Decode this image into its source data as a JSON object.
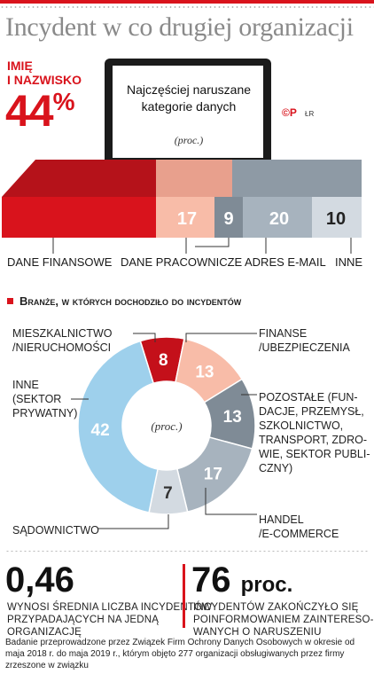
{
  "title": "Incydent w co drugiej organizacji",
  "colors": {
    "red": "#d9131c",
    "light_red": "#f8bca8",
    "dark_gray": "#7f8b96",
    "mid_gray": "#a7b3be",
    "light_gray": "#d3dae1",
    "blue": "#9ed0ec",
    "deep_red": "#c4101a"
  },
  "bar_section": {
    "highlight_label_line1": "IMIĘ",
    "highlight_label_line2": "I NAZWISKO",
    "highlight_value": "44",
    "highlight_unit": "%",
    "screen_text": "Najczęściej naruszane kategorie danych",
    "unit_note": "(proc.)",
    "logo_text": "©P",
    "logo_sub": "ŁR"
  },
  "pie_section": {
    "title": "Branże, w których dochodziło do incydentów",
    "center_unit": "(proc.)"
  },
  "chart_data": [
    {
      "type": "bar",
      "orientation": "stacked-horizontal",
      "unit": "proc.",
      "categories": [
        "IMIĘ I NAZWISKO",
        "DANE FINANSOWE",
        "DANE PRACOWNICZE",
        "ADRES E-MAIL",
        "INNE"
      ],
      "values": [
        44,
        null,
        17,
        20,
        10
      ],
      "labels": [
        "44%",
        "",
        "17",
        "20",
        "10"
      ],
      "extra_value": 9,
      "extra_label": "9",
      "visible_labels": [
        "DANE FINANSOWE",
        "DANE PRACOWNICZE",
        "ADRES E-MAIL",
        "INNE"
      ]
    },
    {
      "type": "pie",
      "variant": "donut",
      "unit": "proc.",
      "categories": [
        "MIESZKALNICTWO /NIERUCHOMOŚCI",
        "FINANSE /UBEZPIECZENIA",
        "POZOSTAŁE (FUNDACJE, PRZEMYSŁ, SZKOLNICTWO, TRANSPORT, ZDROWIE, SEKTOR PUBLICZNY)",
        "HANDEL /E-COMMERCE",
        "SĄDOWNICTWO",
        "INNE (SEKTOR PRYWATNY)"
      ],
      "values": [
        8,
        13,
        13,
        17,
        7,
        42
      ],
      "labels": [
        "8",
        "13",
        "13",
        "17",
        "7",
        "42"
      ]
    }
  ],
  "bar_labels": {
    "finansowe": "DANE FINANSOWE",
    "pracownicze": "DANE PRACOWNICZE",
    "email": "ADRES E-MAIL",
    "inne": "INNE"
  },
  "pie_labels": {
    "mieszkalnictwo": [
      "MIESZKALNICTWO",
      "/NIERUCHOMOŚCI"
    ],
    "finanse": [
      "FINANSE",
      "/UBEZPIECZENIA"
    ],
    "pozostale": [
      "POZOSTAŁE (FUN-",
      "DACJE, PRZEMYSŁ,",
      "SZKOLNICTWO,",
      "TRANSPORT, ZDRO-",
      "WIE, SEKTOR PUBLI-",
      "CZNY)"
    ],
    "handel": [
      "HANDEL",
      "/E-COMMERCE"
    ],
    "sadownictwo": [
      "SĄDOWNICTWO"
    ],
    "inne": [
      "INNE",
      "(SEKTOR",
      "PRYWATNY)"
    ]
  },
  "stats": {
    "left_value": "0,46",
    "left_text": [
      "WYNOSI ŚREDNIA LICZBA INCYDENTÓW",
      "PRZYPADAJĄCYCH NA JEDNĄ",
      "ORGANIZACJĘ"
    ],
    "right_value": "76",
    "right_unit": "proc.",
    "right_text": [
      "INCYDENTÓW ZAKOŃCZYŁO SIĘ",
      "POINFORMOWANIEM ZAINTERESO-",
      "WANYCH O NARUSZENIU"
    ]
  },
  "footnote": "Badanie przeprowadzone przez Związek Firm Ochrony Danych Osobowych w okresie od maja 2018 r. do maja 2019 r., którym objęto 277 organizacji obsługiwanych przez firmy zrzeszone w związku"
}
